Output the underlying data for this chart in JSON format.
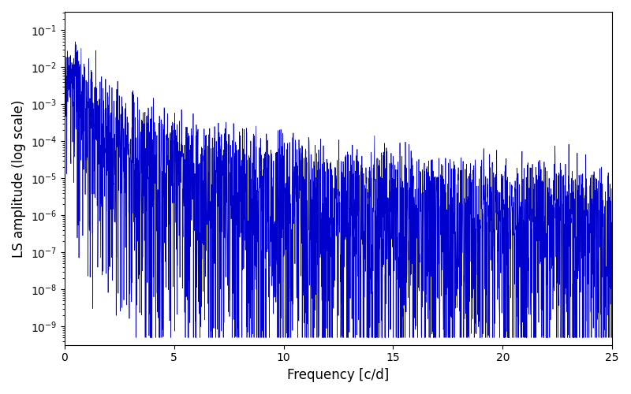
{
  "title": "",
  "xlabel": "Frequency [c/d]",
  "ylabel": "LS amplitude (log scale)",
  "xlim": [
    0,
    25
  ],
  "ylim_log": [
    -9.5,
    -0.5
  ],
  "line_color": "#0000cc",
  "line_width": 0.5,
  "background_color": "#ffffff",
  "figsize": [
    8.0,
    5.0
  ],
  "dpi": 100,
  "num_points": 3000,
  "seed": 42,
  "freq_max": 25.0,
  "tick_major_x": [
    0,
    5,
    10,
    15,
    20,
    25
  ]
}
